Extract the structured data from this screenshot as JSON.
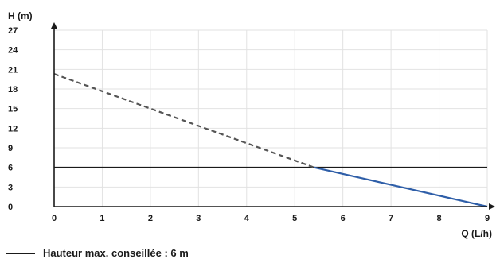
{
  "chart_data": {
    "type": "line",
    "xlabel": "Q (L/h)",
    "ylabel": "H (m)",
    "xlim": [
      0,
      9
    ],
    "ylim": [
      0,
      27
    ],
    "x_ticks": [
      "0",
      "1",
      "2",
      "3",
      "4",
      "5",
      "6",
      "7",
      "8",
      "9"
    ],
    "y_ticks": [
      "0",
      "3",
      "6",
      "9",
      "12",
      "15",
      "18",
      "21",
      "24",
      "27"
    ],
    "grid": true,
    "series": [
      {
        "style": "dashed",
        "color": "#555555",
        "x": [
          0,
          5.4
        ],
        "y": [
          20.3,
          6
        ]
      },
      {
        "style": "solid",
        "color": "#2e5ea8",
        "x": [
          5.4,
          9
        ],
        "y": [
          6,
          0
        ]
      }
    ],
    "reference_line": {
      "y": 6,
      "color": "#1a1a1a",
      "label": "Hauteur max. conseillée : 6 m"
    },
    "legend_position": "bottom-left"
  }
}
